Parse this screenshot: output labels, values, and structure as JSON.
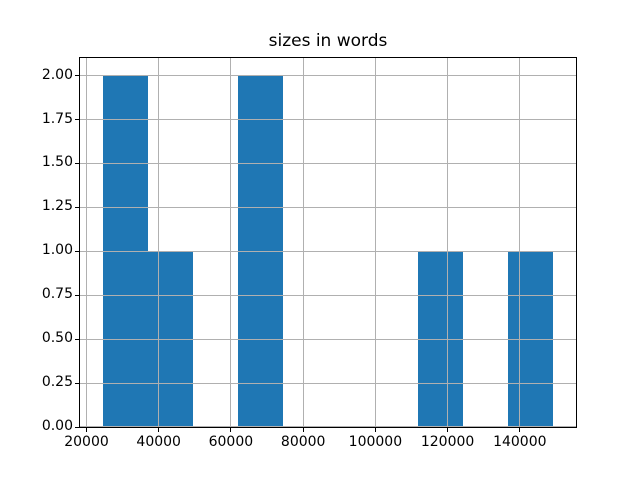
{
  "figure": {
    "background_color": "#ffffff"
  },
  "chart_data": {
    "type": "bar",
    "subtype": "histogram",
    "title": "sizes in words",
    "xlabel": "",
    "ylabel": "",
    "bin_edges": [
      24450,
      36935,
      49420,
      61905,
      74390,
      86875,
      99360,
      111845,
      124330,
      136815,
      149300
    ],
    "counts": [
      2,
      1,
      0,
      2,
      0,
      0,
      0,
      1,
      0,
      1
    ],
    "xlim": [
      18200,
      155550
    ],
    "ylim": [
      0,
      2.1
    ],
    "x_ticks": [
      20000,
      40000,
      60000,
      80000,
      100000,
      120000,
      140000
    ],
    "x_tick_labels": [
      "20000",
      "40000",
      "60000",
      "80000",
      "100000",
      "120000",
      "140000"
    ],
    "y_ticks": [
      0.0,
      0.25,
      0.5,
      0.75,
      1.0,
      1.25,
      1.5,
      1.75,
      2.0
    ],
    "y_tick_labels": [
      "0.00",
      "0.25",
      "0.50",
      "0.75",
      "1.00",
      "1.25",
      "1.50",
      "1.75",
      "2.00"
    ],
    "grid": true,
    "grid_over_bars": true,
    "grid_color": "#b0b0b0",
    "bar_color": "#1f77b4",
    "spine_color": "#000000",
    "legend": "none"
  }
}
